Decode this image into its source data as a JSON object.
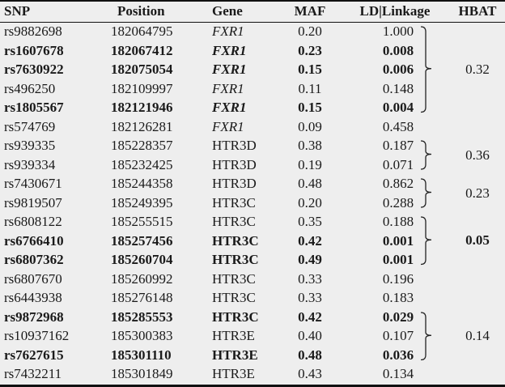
{
  "headers": {
    "snp": "SNP",
    "position": "Position",
    "gene": "Gene",
    "maf": "MAF",
    "ld": "LD|Linkage",
    "hbat": "HBAT"
  },
  "rows": [
    {
      "snp": "rs9882698",
      "position": "182064795",
      "gene": "FXR1",
      "maf": "0.20",
      "ld": "1.000",
      "bold": false,
      "italic_gene": true
    },
    {
      "snp": "rs1607678",
      "position": "182067412",
      "gene": "FXR1",
      "maf": "0.23",
      "ld": "0.008",
      "bold": true,
      "italic_gene": true
    },
    {
      "snp": "rs7630922",
      "position": "182075054",
      "gene": "FXR1",
      "maf": "0.15",
      "ld": "0.006",
      "bold": true,
      "italic_gene": true
    },
    {
      "snp": "rs496250",
      "position": "182109997",
      "gene": "FXR1",
      "maf": "0.11",
      "ld": "0.148",
      "bold": false,
      "italic_gene": true
    },
    {
      "snp": "rs1805567",
      "position": "182121946",
      "gene": "FXR1",
      "maf": "0.15",
      "ld": "0.004",
      "bold": true,
      "italic_gene": true
    },
    {
      "snp": "rs574769",
      "position": "182126281",
      "gene": "FXR1",
      "maf": "0.09",
      "ld": "0.458",
      "bold": false,
      "italic_gene": true
    },
    {
      "snp": "rs939335",
      "position": "185228357",
      "gene": "HTR3D",
      "maf": "0.38",
      "ld": "0.187",
      "bold": false,
      "italic_gene": false
    },
    {
      "snp": "rs939334",
      "position": "185232425",
      "gene": "HTR3D",
      "maf": "0.19",
      "ld": "0.071",
      "bold": false,
      "italic_gene": false
    },
    {
      "snp": "rs7430671",
      "position": "185244358",
      "gene": "HTR3D",
      "maf": "0.48",
      "ld": "0.862",
      "bold": false,
      "italic_gene": false
    },
    {
      "snp": "rs9819507",
      "position": "185249395",
      "gene": "HTR3C",
      "maf": "0.20",
      "ld": "0.288",
      "bold": false,
      "italic_gene": false
    },
    {
      "snp": "rs6808122",
      "position": "185255515",
      "gene": "HTR3C",
      "maf": "0.35",
      "ld": "0.188",
      "bold": false,
      "italic_gene": false
    },
    {
      "snp": "rs6766410",
      "position": "185257456",
      "gene": "HTR3C",
      "maf": "0.42",
      "ld": "0.001",
      "bold": true,
      "italic_gene": false
    },
    {
      "snp": "rs6807362",
      "position": "185260704",
      "gene": "HTR3C",
      "maf": "0.49",
      "ld": "0.001",
      "bold": true,
      "italic_gene": false
    },
    {
      "snp": "rs6807670",
      "position": "185260992",
      "gene": "HTR3C",
      "maf": "0.33",
      "ld": "0.196",
      "bold": false,
      "italic_gene": false
    },
    {
      "snp": "rs6443938",
      "position": "185276148",
      "gene": "HTR3C",
      "maf": "0.33",
      "ld": "0.183",
      "bold": false,
      "italic_gene": false
    },
    {
      "snp": "rs9872968",
      "position": "185285553",
      "gene": "HTR3C",
      "maf": "0.42",
      "ld": "0.029",
      "bold": true,
      "italic_gene": false
    },
    {
      "snp": "rs10937162",
      "position": "185300383",
      "gene": "HTR3E",
      "maf": "0.40",
      "ld": "0.107",
      "bold": false,
      "italic_gene": false
    },
    {
      "snp": "rs7627615",
      "position": "185301110",
      "gene": "HTR3E",
      "maf": "0.48",
      "ld": "0.036",
      "bold": true,
      "italic_gene": false
    },
    {
      "snp": "rs7432211",
      "position": "185301849",
      "gene": "HTR3E",
      "maf": "0.43",
      "ld": "0.134",
      "bold": false,
      "italic_gene": false
    }
  ],
  "hbat_groups": [
    {
      "value": "0.32",
      "first_row": 0,
      "last_row": 4,
      "bold": false
    },
    {
      "value": "0.36",
      "first_row": 6,
      "last_row": 7,
      "bold": false
    },
    {
      "value": "0.23",
      "first_row": 8,
      "last_row": 9,
      "bold": false
    },
    {
      "value": "0.05",
      "first_row": 10,
      "last_row": 12,
      "bold": true
    },
    {
      "value": "0.14",
      "first_row": 15,
      "last_row": 17,
      "bold": false
    }
  ]
}
